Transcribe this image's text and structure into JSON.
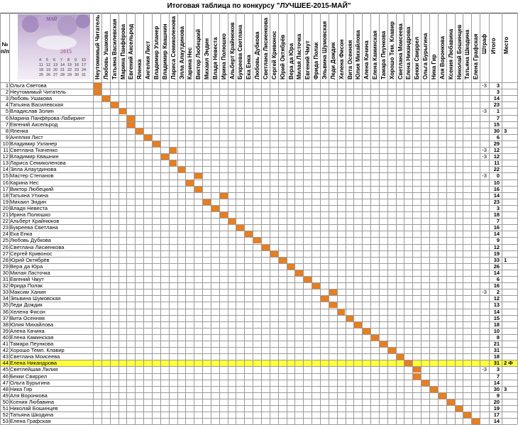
{
  "title": "Итоговая таблица по конкурсу \"ЛУЧШЕЕ-2015-МАЙ\"",
  "corner": {
    "no": "№",
    "pp": "п/п"
  },
  "logo": {
    "month": "МАЙ",
    "year": "2015",
    "days": [
      "4",
      "5",
      "6",
      "7",
      "8",
      "9",
      "10",
      "11",
      "12",
      "13",
      "14",
      "15",
      "16",
      "17",
      "18",
      "19",
      "20",
      "21",
      "22",
      "23",
      "24",
      "25",
      "26",
      "27",
      "28",
      "29",
      "30",
      "31"
    ]
  },
  "extra_headers": {
    "penalty": "Штраф",
    "total": "Итого",
    "place": "Место"
  },
  "participants": [
    "Ольга Светова",
    "Неутомимый Читатель",
    "Любовь Ушакова",
    "Татьяна Василевская",
    "Владислав Золин",
    "Марина Панфёрова-Лабиринт",
    "Евгений Аксельрод",
    "Яленка",
    "Ангелия Лист",
    "Владимир Узланер",
    "Светлана Ткаченко",
    "Владимир Квашнин",
    "Лариса Семиколенова",
    "Элла Алаутдинова",
    "Мастер Степанов",
    "Карина Нес",
    "Виктор Любецкий",
    "Татьяна Уткина",
    "Михаил Эндин",
    "Владя Невеста",
    "Ирина Полюшко",
    "Альберт Крайнюков",
    "Букреева Светлана",
    "Ека Енка",
    "Любовь Дубкова",
    "Светлана Лисиенкова",
    "Сергей Кривонос",
    "Юрий Октябрёв",
    "Вера да Юра",
    "Милая Ласточка",
    "Евгений Чмут",
    "Фрида Полак",
    "Максим Ханин",
    "Эльвина Шумовская",
    "Леди Дождик",
    "Хелена Фисон",
    "Вита Осенняя",
    "Юлия Михайлова",
    "Алена Качина",
    "Елена Каминская",
    "Тамара Пеункова",
    "Хорошо Темп. Клавир",
    "Светлана Моисеева",
    "Елена Никандрова",
    "Светлейшая Лилия",
    "Бекки Свиррел",
    "Ольга Бурыгина",
    "Ника Гир",
    "Аля Воронкова",
    "Ксения Любавина",
    "Николай Бошинцев",
    "Татьяна Шкодина",
    "Елена Графская"
  ],
  "column_headers": [
    "Неутомимый Читатель",
    "Любовь Ушакова",
    "Татьяна Василевская",
    "Марина Панфёрова",
    "Евгений Аксельрод",
    "Яленка",
    "Ангелия Лист",
    "Владимир Узланер",
    "Владимир Квашнин",
    "Лариса Семиколенова",
    "Элла Алаутдинова",
    "Карина Нес",
    "Виктор Любецкий",
    "Михаил Эндин",
    "Владя Невеста",
    "Ирина Полюшко",
    "Альберт Крайнюков",
    "Букреева Светлана",
    "Ека Енка",
    "Любовь Дубкова",
    "Светлана Лисиенкова",
    "Сергей Кривонос",
    "Юрий Октябрёв",
    "Вера да Юра",
    "Милая Ласточка",
    "Евгений Чмут",
    "Фрида Полак",
    "Эльвина Шумовская",
    "Леди Дождик",
    "Хелена Фисон",
    "Вита Осенняя",
    "Юлия Михайлова",
    "Алена Качина",
    "Елена Каминская",
    "Тамара Пеункова",
    "Хорошо Тем. Клавир",
    "Светлана Моисеева",
    "Елена Никандрова",
    "Бекки Свиррел",
    "Ольга Бурыгина",
    "Ника Гир",
    "Аля Воронкова",
    "Ксения Любавина",
    "Николай Бошинцев",
    "Татьяна Шкодина",
    "Елена Графская"
  ],
  "totals": [
    "3",
    "3",
    "14",
    "23",
    "1",
    "7",
    "15",
    "30",
    "6",
    "29",
    "12",
    "12",
    "11",
    "22",
    "0",
    "10",
    "16",
    "14",
    "23",
    "3",
    "18",
    "7",
    "16",
    "14",
    "9",
    "12",
    "19",
    "33",
    "26",
    "14",
    "6",
    "16",
    "2",
    "12",
    "13",
    "14",
    "15",
    "18",
    "10",
    "8",
    "21",
    "31",
    "18",
    "31",
    "3",
    "7",
    "14",
    "30",
    "9",
    "20",
    "19",
    "17",
    "14"
  ],
  "penalty": [
    "-3",
    "",
    "",
    "",
    "-3",
    "",
    "",
    "",
    "",
    "",
    "-3",
    "-3",
    "",
    "",
    "-3",
    "",
    "",
    "",
    "",
    "",
    "",
    "",
    "",
    "",
    "",
    "",
    "",
    "",
    "",
    "",
    "",
    "",
    "-3",
    "",
    "",
    "",
    "",
    "",
    "",
    "",
    "",
    "",
    "",
    "",
    "-3",
    "",
    "",
    "",
    "",
    "",
    "",
    "",
    ""
  ],
  "place_marks": [
    "",
    "",
    "",
    "",
    "",
    "",
    "",
    "3",
    "",
    "",
    "",
    "",
    "",
    "",
    "",
    "",
    "",
    "",
    "",
    "",
    "",
    "",
    "",
    "",
    "",
    "",
    "",
    "1",
    "",
    "",
    "",
    "",
    "",
    "",
    "",
    "",
    "",
    "",
    "",
    "",
    "",
    "",
    "",
    "2 Ф",
    "",
    "",
    "",
    "3",
    "",
    "",
    "",
    "",
    ""
  ],
  "highlight_row_label": "Елена Никандрова",
  "colors": {
    "diagonal": "#e67e22",
    "highlight": "#ffff3a"
  }
}
